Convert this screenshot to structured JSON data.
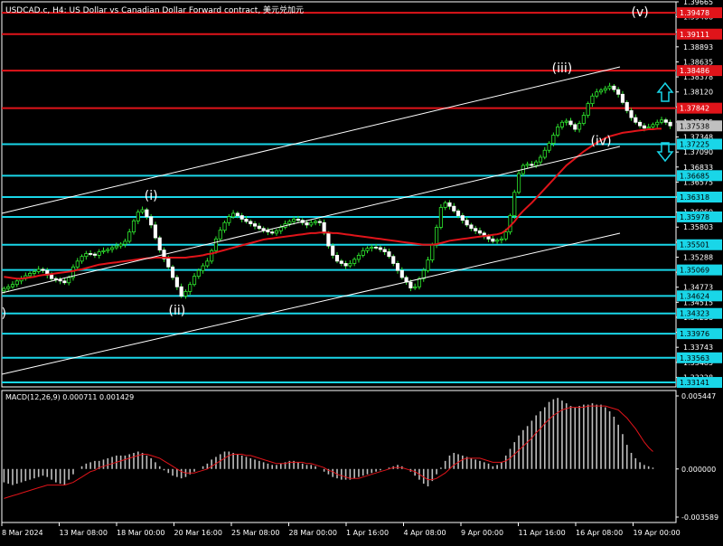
{
  "chart_data": {
    "type": "candlestick",
    "symbol_title": "USDCAD.c, H4: US Dollar vs Canadian Dollar Forward contract, 美元兑加元",
    "y_ticks": [
      "1.39665",
      "1.39408",
      "1.39150",
      "1.38893",
      "1.38635",
      "1.38378",
      "1.38120",
      "1.37863",
      "1.37605",
      "1.37348",
      "1.37090",
      "1.36833",
      "1.36575",
      "1.36318",
      "1.36060",
      "1.35803",
      "1.35545",
      "1.35288",
      "1.35030",
      "1.34773",
      "1.34515",
      "1.34258",
      "1.34000",
      "1.33743",
      "1.33485",
      "1.33228"
    ],
    "y_range": [
      1.33064,
      1.39665
    ],
    "h_levels": [
      {
        "value": 1.39478,
        "label": "1.39478",
        "color": "red"
      },
      {
        "value": 1.39111,
        "label": "1.39111",
        "color": "red"
      },
      {
        "value": 1.38486,
        "label": "1.38486",
        "color": "red"
      },
      {
        "value": 1.37842,
        "label": "1.37842",
        "color": "red"
      },
      {
        "value": 1.37225,
        "label": "1.37225",
        "color": "cyan"
      },
      {
        "value": 1.36685,
        "label": "1.36685",
        "color": "cyan"
      },
      {
        "value": 1.36318,
        "label": "1.36318",
        "color": "cyan"
      },
      {
        "value": 1.35978,
        "label": "1.35978",
        "color": "cyan"
      },
      {
        "value": 1.35501,
        "label": "1.35501",
        "color": "cyan"
      },
      {
        "value": 1.35069,
        "label": "1.35069",
        "color": "cyan"
      },
      {
        "value": 1.34624,
        "label": "1.34624",
        "color": "cyan"
      },
      {
        "value": 1.34323,
        "label": "1.34323",
        "color": "cyan"
      },
      {
        "value": 1.33976,
        "label": "1.33976",
        "color": "cyan"
      },
      {
        "value": 1.33563,
        "label": "1.33563",
        "color": "cyan"
      },
      {
        "value": 1.33141,
        "label": "1.33141",
        "color": "cyan"
      }
    ],
    "current_price": {
      "value": 1.37538,
      "label": "1.37538"
    },
    "x_ticks": [
      "8 Mar 2024",
      "13 Mar 08:00",
      "18 Mar 00:00",
      "20 Mar 16:00",
      "25 Mar 08:00",
      "28 Mar 00:00",
      "1 Apr 16:00",
      "4 Apr 08:00",
      "9 Apr 00:00",
      "11 Apr 16:00",
      "16 Apr 08:00",
      "19 Apr 00:00"
    ],
    "closes": [
      1.3475,
      1.3478,
      1.3482,
      1.3488,
      1.3492,
      1.3497,
      1.3501,
      1.3504,
      1.3508,
      1.3506,
      1.3498,
      1.3492,
      1.349,
      1.3488,
      1.3485,
      1.3494,
      1.3512,
      1.3522,
      1.353,
      1.3535,
      1.3534,
      1.3532,
      1.3538,
      1.354,
      1.3542,
      1.3545,
      1.3548,
      1.3551,
      1.3556,
      1.3572,
      1.3591,
      1.3606,
      1.361,
      1.3598,
      1.3584,
      1.3562,
      1.3541,
      1.3526,
      1.3512,
      1.3494,
      1.3478,
      1.3462,
      1.347,
      1.3482,
      1.3496,
      1.3506,
      1.3514,
      1.3522,
      1.354,
      1.356,
      1.3575,
      1.3588,
      1.3598,
      1.3604,
      1.36,
      1.3594,
      1.359,
      1.3586,
      1.3582,
      1.3578,
      1.3575,
      1.3572,
      1.357,
      1.3574,
      1.358,
      1.3586,
      1.359,
      1.3594,
      1.3592,
      1.3588,
      1.3584,
      1.3588,
      1.359,
      1.3588,
      1.357,
      1.3548,
      1.3532,
      1.3522,
      1.3518,
      1.3514,
      1.3518,
      1.3525,
      1.3532,
      1.354,
      1.3544,
      1.3546,
      1.3545,
      1.3542,
      1.3538,
      1.353,
      1.3518,
      1.3506,
      1.3494,
      1.3486,
      1.3476,
      1.3478,
      1.3492,
      1.3506,
      1.3524,
      1.355,
      1.358,
      1.3614,
      1.3622,
      1.3616,
      1.3608,
      1.36,
      1.3592,
      1.3584,
      1.3578,
      1.3574,
      1.357,
      1.3564,
      1.356,
      1.3556,
      1.3558,
      1.356,
      1.3572,
      1.36,
      1.364,
      1.3672,
      1.3686,
      1.3688,
      1.3686,
      1.3692,
      1.37,
      1.3712,
      1.3724,
      1.3738,
      1.3752,
      1.376,
      1.3762,
      1.3756,
      1.3748,
      1.3758,
      1.3772,
      1.3792,
      1.3805,
      1.3812,
      1.3815,
      1.3818,
      1.3822,
      1.3816,
      1.3808,
      1.3794,
      1.378,
      1.3768,
      1.376,
      1.3754,
      1.375,
      1.3752,
      1.3756,
      1.376,
      1.3764,
      1.376,
      1.3754
    ],
    "ma_values": [
      1.3495,
      1.3494,
      1.3493,
      1.3492,
      1.3492,
      1.3493,
      1.3494,
      1.3495,
      1.3497,
      1.3498,
      1.3499,
      1.35,
      1.3501,
      1.3502,
      1.3503,
      1.3504,
      1.3505,
      1.3507,
      1.3508,
      1.351,
      1.3512,
      1.3514,
      1.3516,
      1.3517,
      1.3518,
      1.3519,
      1.352,
      1.3521,
      1.3522,
      1.3523,
      1.3524,
      1.3525,
      1.3526,
      1.3527,
      1.3527,
      1.3528,
      1.3528,
      1.3528,
      1.3528,
      1.3528,
      1.3528,
      1.3528,
      1.3528,
      1.3529,
      1.353,
      1.3531,
      1.3532,
      1.3534,
      1.3535,
      1.3537,
      1.3539,
      1.3541,
      1.3543,
      1.3545,
      1.3547,
      1.3549,
      1.3551,
      1.3553,
      1.3555,
      1.3557,
      1.3559,
      1.356,
      1.3561,
      1.3562,
      1.3563,
      1.3564,
      1.3565,
      1.3566,
      1.3567,
      1.3568,
      1.3569,
      1.357,
      1.357,
      1.3571,
      1.3571,
      1.3571,
      1.357,
      1.357,
      1.3569,
      1.3568,
      1.3567,
      1.3566,
      1.3565,
      1.3564,
      1.3563,
      1.3562,
      1.3561,
      1.356,
      1.3559,
      1.3558,
      1.3557,
      1.3556,
      1.3555,
      1.3554,
      1.3553,
      1.3552,
      1.3551,
      1.355,
      1.355,
      1.355,
      1.3551,
      1.3553,
      1.3555,
      1.3557,
      1.3558,
      1.3559,
      1.356,
      1.3561,
      1.3562,
      1.3563,
      1.3564,
      1.3565,
      1.3566,
      1.3567,
      1.3568,
      1.357,
      1.3575,
      1.3582,
      1.359,
      1.36,
      1.3608,
      1.3615,
      1.3622,
      1.363,
      1.3638,
      1.3646,
      1.3654,
      1.3662,
      1.367,
      1.3678,
      1.3686,
      1.3692,
      1.3698,
      1.3704,
      1.371,
      1.3715,
      1.372,
      1.3725,
      1.3729,
      1.3733,
      1.3736,
      1.3738,
      1.374,
      1.3742,
      1.3743,
      1.3744,
      1.3745,
      1.3746,
      1.3747,
      1.3748,
      1.3748,
      1.3749,
      1.3749
    ],
    "wave_labels": [
      {
        "text": "(i)",
        "value": 1.3627,
        "bar": 34
      },
      {
        "text": "(ii)",
        "value": 1.343,
        "bar": 40
      },
      {
        "text": "(iii)",
        "value": 1.3846,
        "bar": 129
      },
      {
        "text": "(iv)",
        "value": 1.3721,
        "bar": 138
      },
      {
        "text": "(v)",
        "value": 1.3942,
        "bar": 147
      },
      {
        "text": ")",
        "value": 1.3426,
        "bar": 0
      }
    ],
    "macd": {
      "label": "MACD(12,26,9) 0.000711 0.001429",
      "y_ticks": [
        "0.005447",
        "0.000000",
        "-0.003589"
      ],
      "y_range": [
        -0.003589,
        0.005447
      ],
      "histogram": [
        -0.001,
        -0.0011,
        -0.0012,
        -0.0011,
        -0.001,
        -0.0009,
        -0.0008,
        -0.0007,
        -0.0006,
        -0.0005,
        -0.0006,
        -0.0008,
        -0.001,
        -0.0011,
        -0.0012,
        -0.0008,
        -0.0004,
        0.0,
        0.0002,
        0.0004,
        0.0005,
        0.0006,
        0.0006,
        0.0007,
        0.0008,
        0.0009,
        0.001,
        0.001,
        0.001,
        0.0011,
        0.0012,
        0.0013,
        0.0012,
        0.001,
        0.0008,
        0.0005,
        0.0002,
        -0.0001,
        -0.0003,
        -0.0005,
        -0.0006,
        -0.0007,
        -0.0006,
        -0.0004,
        -0.0002,
        0.0,
        0.0002,
        0.0004,
        0.0007,
        0.0009,
        0.0011,
        0.0013,
        0.0013,
        0.0012,
        0.0011,
        0.001,
        0.0009,
        0.0008,
        0.0007,
        0.0006,
        0.0005,
        0.0004,
        0.0003,
        0.0003,
        0.0004,
        0.0005,
        0.0006,
        0.0006,
        0.0005,
        0.0004,
        0.0003,
        0.0003,
        0.0002,
        0.0,
        -0.0002,
        -0.0004,
        -0.0006,
        -0.0007,
        -0.0008,
        -0.0008,
        -0.0008,
        -0.0007,
        -0.0006,
        -0.0005,
        -0.0004,
        -0.0003,
        -0.0002,
        -0.0001,
        0.0,
        0.0001,
        0.0002,
        0.0003,
        0.0002,
        0.0,
        -0.0002,
        -0.0005,
        -0.0008,
        -0.0011,
        -0.0013,
        -0.0009,
        -0.0004,
        0.0001,
        0.0006,
        0.001,
        0.0012,
        0.0011,
        0.001,
        0.0009,
        0.0008,
        0.0007,
        0.0006,
        0.0005,
        0.0004,
        0.0002,
        0.0003,
        0.0005,
        0.001,
        0.0015,
        0.002,
        0.0025,
        0.0029,
        0.0032,
        0.0036,
        0.004,
        0.0043,
        0.0046,
        0.005,
        0.0052,
        0.0053,
        0.0051,
        0.0049,
        0.0047,
        0.0046,
        0.0047,
        0.0048,
        0.0048,
        0.0049,
        0.0048,
        0.0048,
        0.0046,
        0.0043,
        0.0039,
        0.0033,
        0.0026,
        0.0018,
        0.0012,
        0.0008,
        0.0005,
        0.0003,
        0.0002,
        0.0001
      ],
      "signal": [
        -0.0022,
        -0.0021,
        -0.002,
        -0.0019,
        -0.0018,
        -0.0017,
        -0.0016,
        -0.0015,
        -0.0014,
        -0.0013,
        -0.0012,
        -0.0012,
        -0.0012,
        -0.0012,
        -0.0012,
        -0.0011,
        -0.001,
        -0.0008,
        -0.0006,
        -0.0004,
        -0.0002,
        -0.0001,
        0.0001,
        0.0002,
        0.0003,
        0.0004,
        0.0005,
        0.0006,
        0.0007,
        0.0008,
        0.0009,
        0.001,
        0.0011,
        0.0011,
        0.001,
        0.0009,
        0.0008,
        0.0006,
        0.0004,
        0.0002,
        0.0,
        -0.0002,
        -0.0003,
        -0.0003,
        -0.0003,
        -0.0002,
        -0.0001,
        0.0,
        0.0002,
        0.0004,
        0.0006,
        0.0008,
        0.001,
        0.0011,
        0.0011,
        0.0011,
        0.001,
        0.001,
        0.0009,
        0.0008,
        0.0007,
        0.0006,
        0.0005,
        0.0004,
        0.0004,
        0.0004,
        0.0005,
        0.0005,
        0.0005,
        0.0005,
        0.0004,
        0.0004,
        0.0003,
        0.0002,
        0.0001,
        -0.0001,
        -0.0002,
        -0.0004,
        -0.0005,
        -0.0006,
        -0.0007,
        -0.0007,
        -0.0007,
        -0.0006,
        -0.0005,
        -0.0004,
        -0.0003,
        -0.0002,
        -0.0001,
        0.0,
        0.0001,
        0.0001,
        0.0001,
        0.0,
        -0.0001,
        -0.0002,
        -0.0004,
        -0.0006,
        -0.0008,
        -0.0008,
        -0.0007,
        -0.0005,
        -0.0003,
        0.0,
        0.0003,
        0.0005,
        0.0007,
        0.0008,
        0.0008,
        0.0008,
        0.0008,
        0.0007,
        0.0006,
        0.0005,
        0.0005,
        0.0005,
        0.0006,
        0.0008,
        0.0011,
        0.0014,
        0.0017,
        0.002,
        0.0023,
        0.0027,
        0.003,
        0.0034,
        0.0037,
        0.004,
        0.0042,
        0.0044,
        0.0045,
        0.0046,
        0.0046,
        0.0046,
        0.0046,
        0.0047,
        0.0047,
        0.0047,
        0.0047,
        0.0047,
        0.0046,
        0.0045,
        0.0044,
        0.0041,
        0.0038,
        0.0034,
        0.003,
        0.0025,
        0.002,
        0.0016,
        0.0013
      ]
    }
  }
}
